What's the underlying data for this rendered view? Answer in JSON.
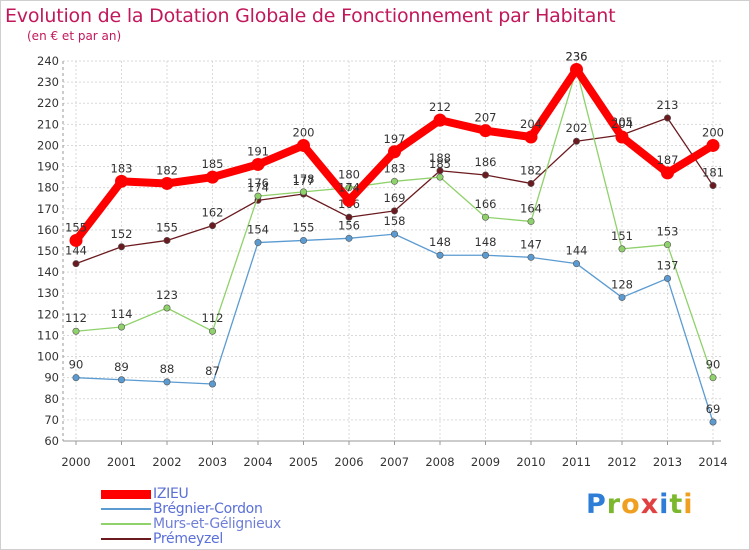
{
  "title": "Evolution de la Dotation Globale de Fonctionnement par Habitant",
  "subtitle": "(en € et par an)",
  "brand": {
    "name": "Proxiti",
    "letters": [
      "P",
      "r",
      "o",
      "x",
      "i",
      "t",
      "i"
    ],
    "colors": [
      "#2e7dd6",
      "#7bb82e",
      "#f0a020",
      "#e04040",
      "#2e7dd6",
      "#7bb82e",
      "#f0a020"
    ]
  },
  "chart_data": {
    "type": "line",
    "title": "Evolution de la Dotation Globale de Fonctionnement par Habitant",
    "subtitle": "(en € et par an)",
    "xlabel": "",
    "ylabel": "",
    "ylim": [
      60,
      240
    ],
    "yticks": [
      60,
      70,
      80,
      90,
      100,
      110,
      120,
      130,
      140,
      150,
      160,
      170,
      180,
      190,
      200,
      210,
      220,
      230,
      240
    ],
    "x": [
      2000,
      2001,
      2002,
      2003,
      2004,
      2005,
      2006,
      2007,
      2008,
      2009,
      2010,
      2011,
      2012,
      2013,
      2014
    ],
    "legend_position": "bottom-left",
    "series": [
      {
        "name": "Prémeyzel",
        "color": "#6b1a1f",
        "values": [
          144,
          152,
          155,
          162,
          174,
          177,
          166,
          169,
          188,
          186,
          182,
          202,
          205,
          213,
          181
        ]
      },
      {
        "name": "Murs-et-Gélignieux",
        "color": "#8fd16a",
        "values": [
          112,
          114,
          123,
          112,
          176,
          178,
          180,
          183,
          185,
          166,
          164,
          236,
          151,
          153,
          90
        ]
      },
      {
        "name": "Brégnier-Cordon",
        "color": "#5b9bd1",
        "values": [
          90,
          89,
          88,
          87,
          154,
          155,
          156,
          158,
          148,
          148,
          147,
          144,
          128,
          137,
          69
        ]
      },
      {
        "name": "IZIEU",
        "color": "#ff0000",
        "values": [
          155,
          183,
          182,
          185,
          191,
          200,
          174,
          197,
          212,
          207,
          204,
          236,
          204,
          187,
          200
        ]
      }
    ]
  }
}
